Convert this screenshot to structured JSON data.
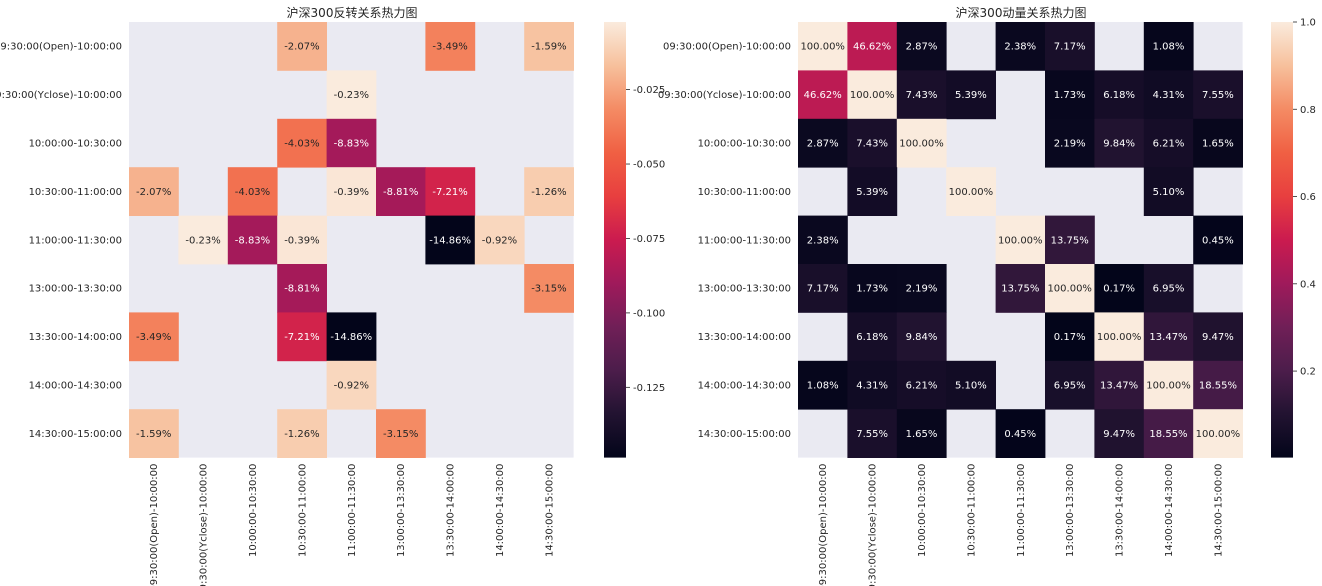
{
  "row_labels": [
    "09:30:00(Open)-10:00:00",
    "09:30:00(Yclose)-10:00:00",
    "10:00:00-10:30:00",
    "10:30:00-11:00:00",
    "11:00:00-11:30:00",
    "13:00:00-13:30:00",
    "13:30:00-14:00:00",
    "14:00:00-14:30:00",
    "14:30:00-15:00:00"
  ],
  "chart_data": [
    {
      "type": "heatmap",
      "title": "沪深300反转关系热力图",
      "xlabel": "",
      "ylabel": "",
      "colormap": "rocket",
      "vmin": -0.1486,
      "vmax": -0.0023,
      "colorbar_ticks": [
        -0.025,
        -0.05,
        -0.075,
        -0.1,
        -0.125
      ],
      "colorbar_tick_labels": [
        "-0.025",
        "-0.050",
        "-0.075",
        "-0.100",
        "-0.125"
      ],
      "values": [
        [
          null,
          null,
          null,
          -0.0207,
          null,
          null,
          -0.0349,
          null,
          -0.0159
        ],
        [
          null,
          null,
          null,
          null,
          -0.0023,
          null,
          null,
          null,
          null
        ],
        [
          null,
          null,
          null,
          -0.0403,
          -0.0883,
          null,
          null,
          null,
          null
        ],
        [
          -0.0207,
          null,
          -0.0403,
          null,
          -0.0039,
          -0.0881,
          -0.0721,
          null,
          -0.0126
        ],
        [
          null,
          -0.0023,
          -0.0883,
          -0.0039,
          null,
          null,
          -0.1486,
          -0.0092,
          null
        ],
        [
          null,
          null,
          null,
          -0.0881,
          null,
          null,
          null,
          null,
          -0.0315
        ],
        [
          -0.0349,
          null,
          null,
          -0.0721,
          -0.1486,
          null,
          null,
          null,
          null
        ],
        [
          null,
          null,
          null,
          null,
          -0.0092,
          null,
          null,
          null,
          null
        ],
        [
          -0.0159,
          null,
          null,
          -0.0126,
          null,
          -0.0315,
          null,
          null,
          null
        ]
      ],
      "labels": [
        [
          "",
          "",
          "",
          "-2.07%",
          "",
          "",
          "-3.49%",
          "",
          "-1.59%"
        ],
        [
          "",
          "",
          "",
          "",
          "-0.23%",
          "",
          "",
          "",
          ""
        ],
        [
          "",
          "",
          "",
          "-4.03%",
          "-8.83%",
          "",
          "",
          "",
          ""
        ],
        [
          "-2.07%",
          "",
          "-4.03%",
          "",
          "-0.39%",
          "-8.81%",
          "-7.21%",
          "",
          "-1.26%"
        ],
        [
          "",
          "-0.23%",
          "-8.83%",
          "-0.39%",
          "",
          "",
          "-14.86%",
          "-0.92%",
          ""
        ],
        [
          "",
          "",
          "",
          "-8.81%",
          "",
          "",
          "",
          "",
          "-3.15%"
        ],
        [
          "-3.49%",
          "",
          "",
          "-7.21%",
          "-14.86%",
          "",
          "",
          "",
          ""
        ],
        [
          "",
          "",
          "",
          "",
          "-0.92%",
          "",
          "",
          "",
          ""
        ],
        [
          "-1.59%",
          "",
          "",
          "-1.26%",
          "",
          "-3.15%",
          "",
          "",
          ""
        ]
      ]
    },
    {
      "type": "heatmap",
      "title": "沪深300动量关系热力图",
      "xlabel": "",
      "ylabel": "",
      "colormap": "rocket",
      "vmin": 0.0017,
      "vmax": 1.0,
      "colorbar_ticks": [
        1.0,
        0.8,
        0.6,
        0.4,
        0.2
      ],
      "colorbar_tick_labels": [
        "1.0",
        "0.8",
        "0.6",
        "0.4",
        "0.2"
      ],
      "values": [
        [
          1.0,
          0.4662,
          0.0287,
          null,
          0.0238,
          0.0717,
          null,
          0.0108,
          null
        ],
        [
          0.4662,
          1.0,
          0.0743,
          0.0539,
          null,
          0.0173,
          0.0618,
          0.0431,
          0.0755
        ],
        [
          0.0287,
          0.0743,
          1.0,
          null,
          null,
          0.0219,
          0.0984,
          0.0621,
          0.0165
        ],
        [
          null,
          0.0539,
          null,
          1.0,
          null,
          null,
          null,
          0.051,
          null
        ],
        [
          0.0238,
          null,
          null,
          null,
          1.0,
          0.1375,
          null,
          null,
          0.0045
        ],
        [
          0.0717,
          0.0173,
          0.0219,
          null,
          0.1375,
          1.0,
          0.0017,
          0.0695,
          null
        ],
        [
          null,
          0.0618,
          0.0984,
          null,
          null,
          0.0017,
          1.0,
          0.1347,
          0.0947
        ],
        [
          0.0108,
          0.0431,
          0.0621,
          0.051,
          null,
          0.0695,
          0.1347,
          1.0,
          0.1855
        ],
        [
          null,
          0.0755,
          0.0165,
          null,
          0.0045,
          null,
          0.0947,
          0.1855,
          1.0
        ]
      ],
      "labels": [
        [
          "100.00%",
          "46.62%",
          "2.87%",
          "",
          "2.38%",
          "7.17%",
          "",
          "1.08%",
          ""
        ],
        [
          "46.62%",
          "100.00%",
          "7.43%",
          "5.39%",
          "",
          "1.73%",
          "6.18%",
          "4.31%",
          "7.55%"
        ],
        [
          "2.87%",
          "7.43%",
          "100.00%",
          "",
          "",
          "2.19%",
          "9.84%",
          "6.21%",
          "1.65%"
        ],
        [
          "",
          "5.39%",
          "",
          "100.00%",
          "",
          "",
          "",
          "5.10%",
          ""
        ],
        [
          "2.38%",
          "",
          "",
          "",
          "100.00%",
          "13.75%",
          "",
          "",
          "0.45%"
        ],
        [
          "7.17%",
          "1.73%",
          "2.19%",
          "",
          "13.75%",
          "100.00%",
          "0.17%",
          "6.95%",
          ""
        ],
        [
          "",
          "6.18%",
          "9.84%",
          "",
          "",
          "0.17%",
          "100.00%",
          "13.47%",
          "9.47%"
        ],
        [
          "1.08%",
          "4.31%",
          "6.21%",
          "5.10%",
          "",
          "6.95%",
          "13.47%",
          "100.00%",
          "18.55%"
        ],
        [
          "",
          "7.55%",
          "1.65%",
          "",
          "0.45%",
          "",
          "9.47%",
          "18.55%",
          "100.00%"
        ]
      ]
    }
  ],
  "colors": {
    "nan_background": "#eaeaf2",
    "text_dark": "#262626",
    "text_light": "#ffffff"
  }
}
